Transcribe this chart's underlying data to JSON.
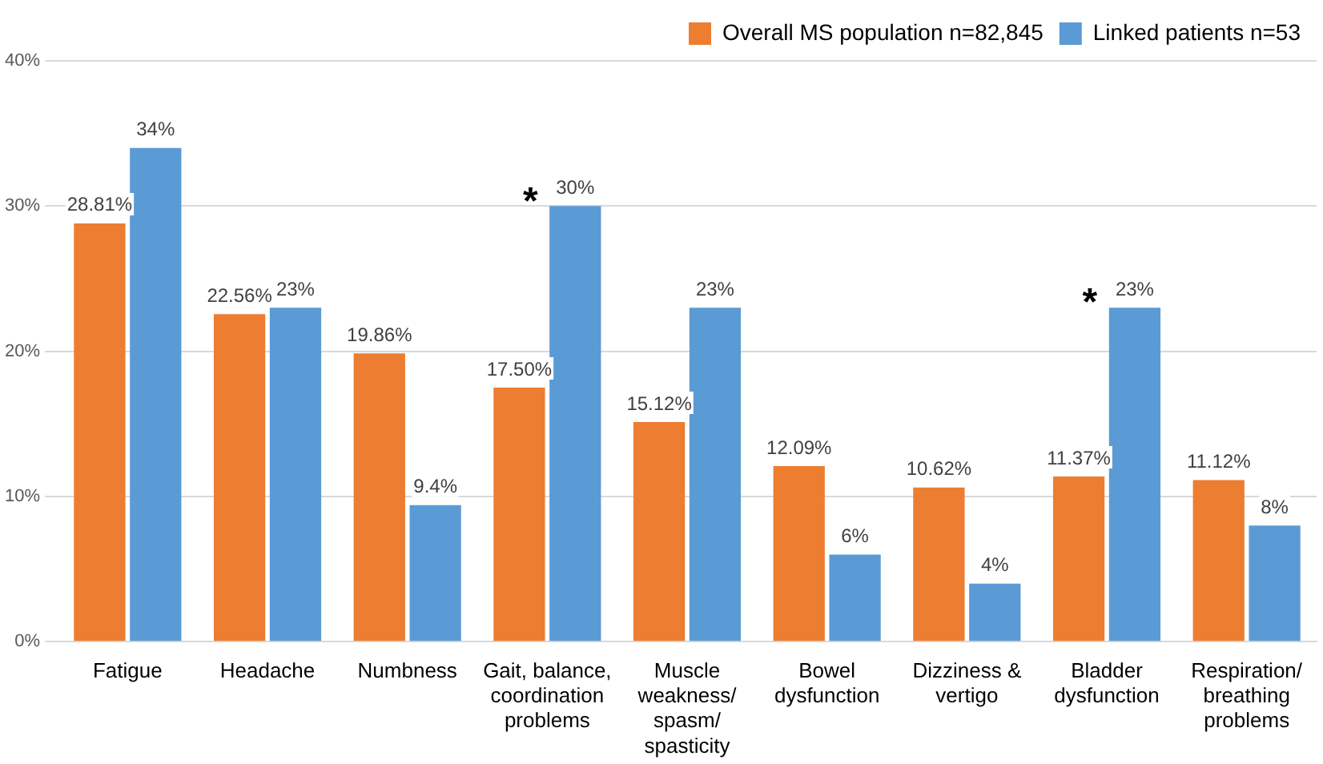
{
  "chart_data": {
    "type": "bar",
    "categories": [
      "Fatigue",
      "Headache",
      "Numbness",
      "Gait, balance,\ncoordination\nproblems",
      "Muscle\nweakness/\nspasm/\nspasticity",
      "Bowel\ndysfunction",
      "Dizziness &\nvertigo",
      "Bladder\ndysfunction",
      "Respiration/\nbreathing\nproblems"
    ],
    "series": [
      {
        "name": "Overall MS population n=82,845",
        "color": "#ed7d31",
        "values": [
          28.81,
          22.56,
          19.86,
          17.5,
          15.12,
          12.09,
          10.62,
          11.37,
          11.12
        ],
        "value_labels": [
          "28.81%",
          "22.56%",
          "19.86%",
          "17.50%",
          "15.12%",
          "12.09%",
          "10.62%",
          "11.37%",
          "11.12%"
        ]
      },
      {
        "name": "Linked patients n=53",
        "color": "#5b9bd5",
        "values": [
          34,
          23,
          9.4,
          30,
          23,
          6,
          4,
          23,
          8
        ],
        "value_labels": [
          "34%",
          "23%",
          "9.4%",
          "30%",
          "23%",
          "6%",
          "4%",
          "23%",
          "8%"
        ]
      }
    ],
    "ylim": [
      0,
      40
    ],
    "yticks": [
      {
        "value": 0,
        "label": "0%"
      },
      {
        "value": 10,
        "label": "10%"
      },
      {
        "value": 20,
        "label": "20%"
      },
      {
        "value": 30,
        "label": "30%"
      },
      {
        "value": 40,
        "label": "40%"
      }
    ],
    "grid": "y",
    "legend": "top right",
    "annotations": [
      {
        "text": "*",
        "x": "Gait, balance,\ncoordination\nproblems",
        "y": 30
      },
      {
        "text": "*",
        "x": "Bladder\ndysfunction",
        "y": 23
      }
    ]
  }
}
